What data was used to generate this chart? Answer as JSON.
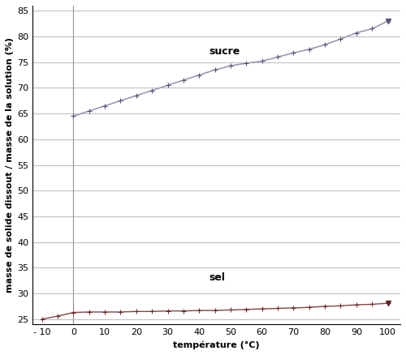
{
  "sucre_x": [
    0,
    5,
    10,
    15,
    20,
    25,
    30,
    35,
    40,
    45,
    50,
    55,
    60,
    65,
    70,
    75,
    80,
    85,
    90,
    95,
    100
  ],
  "sucre_y": [
    64.5,
    65.5,
    66.5,
    67.5,
    68.5,
    69.5,
    70.5,
    71.5,
    72.5,
    73.5,
    74.3,
    74.8,
    75.2,
    76.0,
    76.8,
    77.5,
    78.4,
    79.5,
    80.7,
    81.5,
    83.0
  ],
  "sel_x": [
    -10,
    -5,
    0,
    5,
    10,
    15,
    20,
    25,
    30,
    35,
    40,
    45,
    50,
    55,
    60,
    65,
    70,
    75,
    80,
    85,
    90,
    95,
    100
  ],
  "sel_y": [
    25.0,
    25.6,
    26.3,
    26.4,
    26.4,
    26.4,
    26.5,
    26.5,
    26.6,
    26.6,
    26.7,
    26.7,
    26.8,
    26.9,
    27.0,
    27.1,
    27.2,
    27.3,
    27.5,
    27.6,
    27.8,
    27.9,
    28.1
  ],
  "sucre_color": "#9999bb",
  "sucre_marker_color": "#555577",
  "sel_color": "#884444",
  "sel_marker_color": "#662222",
  "vline_color": "#999999",
  "grid_color": "#bbbbbb",
  "background_color": "#ffffff",
  "xlabel": "température (°C)",
  "ylabel": "masse de solide dissout / masse de la solution (%)",
  "sucre_label": "sucre",
  "sel_label": "sel",
  "xlim": [
    -13,
    104
  ],
  "ylim": [
    24,
    86
  ],
  "xticks": [
    -10,
    0,
    10,
    20,
    30,
    40,
    50,
    60,
    70,
    80,
    90,
    100
  ],
  "yticks": [
    25,
    30,
    35,
    40,
    45,
    50,
    55,
    60,
    65,
    70,
    75,
    80,
    85
  ],
  "axis_label_fontsize": 8,
  "tick_fontsize": 8,
  "label_fontsize": 9
}
